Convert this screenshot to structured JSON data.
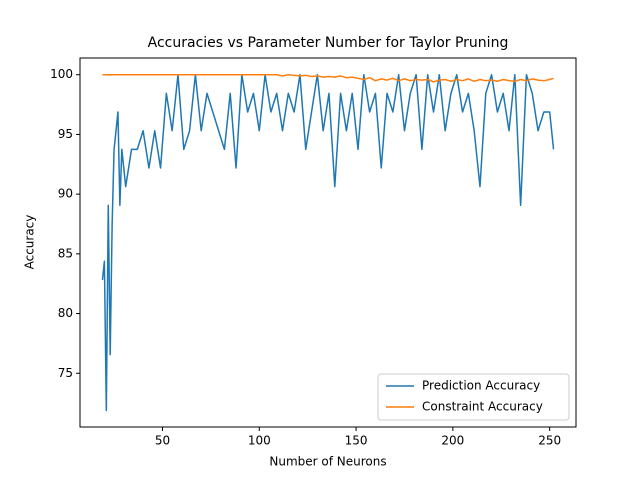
{
  "chart_data": {
    "type": "line",
    "title": "Accuracies vs Parameter Number for Taylor Pruning",
    "x_label": "Number of Neurons",
    "y_label": "Accuracy",
    "x": [
      19,
      20,
      21,
      22,
      23,
      24,
      25,
      26,
      27,
      28,
      29,
      30,
      31,
      34,
      37,
      40,
      43,
      46,
      49,
      52,
      55,
      58,
      61,
      64,
      67,
      70,
      73,
      76,
      79,
      82,
      85,
      88,
      91,
      94,
      97,
      100,
      103,
      106,
      109,
      112,
      115,
      118,
      121,
      124,
      127,
      130,
      133,
      136,
      139,
      142,
      145,
      148,
      151,
      154,
      157,
      160,
      163,
      166,
      169,
      172,
      175,
      178,
      181,
      184,
      187,
      190,
      193,
      196,
      199,
      202,
      205,
      208,
      211,
      214,
      217,
      220,
      223,
      226,
      229,
      232,
      235,
      238,
      241,
      244,
      247,
      250,
      252
    ],
    "series": [
      {
        "name": "Prediction Accuracy",
        "color": "#1f77b4",
        "values": [
          82.81,
          84.38,
          71.88,
          89.06,
          76.56,
          87.5,
          93.75,
          95.31,
          96.88,
          89.06,
          93.75,
          92.19,
          90.63,
          93.75,
          93.75,
          95.31,
          92.19,
          95.31,
          92.19,
          98.44,
          95.31,
          100,
          93.75,
          95.31,
          100,
          95.31,
          98.44,
          96.88,
          95.31,
          93.75,
          98.44,
          92.19,
          100,
          96.88,
          98.44,
          95.31,
          100,
          96.88,
          98.44,
          95.31,
          98.44,
          96.88,
          100,
          93.75,
          96.88,
          100,
          95.31,
          98.44,
          90.63,
          98.44,
          95.31,
          98.44,
          93.75,
          100,
          96.88,
          98.44,
          92.19,
          98.44,
          96.88,
          100,
          95.31,
          98.44,
          100,
          93.75,
          100,
          96.88,
          100,
          95.31,
          98.44,
          100,
          96.88,
          98.44,
          95.31,
          90.63,
          98.44,
          100,
          96.88,
          98.44,
          95.31,
          100,
          89.06,
          100,
          98.44,
          95.31,
          96.88,
          96.88,
          93.75
        ]
      },
      {
        "name": "Constraint Accuracy",
        "color": "#ff7f0e",
        "values": [
          100,
          100,
          100,
          100,
          100,
          100,
          100,
          100,
          100,
          100,
          100,
          100,
          100,
          100,
          100,
          100,
          100,
          100,
          100,
          100,
          100,
          100,
          100,
          100,
          100,
          100,
          100,
          100,
          100,
          100,
          100,
          100,
          100,
          100,
          100,
          100,
          100,
          100,
          100,
          99.9,
          100,
          99.95,
          99.9,
          99.95,
          99.85,
          99.9,
          99.8,
          99.85,
          99.8,
          99.9,
          99.75,
          99.8,
          99.7,
          99.6,
          99.75,
          99.5,
          99.65,
          99.55,
          99.7,
          99.5,
          99.65,
          99.5,
          99.6,
          99.55,
          99.6,
          99.4,
          99.55,
          99.6,
          99.45,
          99.6,
          99.5,
          99.65,
          99.45,
          99.6,
          99.5,
          99.55,
          99.45,
          99.6,
          99.5,
          99.45,
          99.6,
          99.5,
          99.65,
          99.55,
          99.5,
          99.6,
          99.7
        ]
      }
    ],
    "xlim": [
      7.4,
      263.6
    ],
    "ylim": [
      70.5,
      101.4
    ],
    "xticks": [
      50,
      100,
      150,
      200,
      250
    ],
    "yticks": [
      75,
      80,
      85,
      90,
      95,
      100
    ],
    "legend": "lower right"
  }
}
